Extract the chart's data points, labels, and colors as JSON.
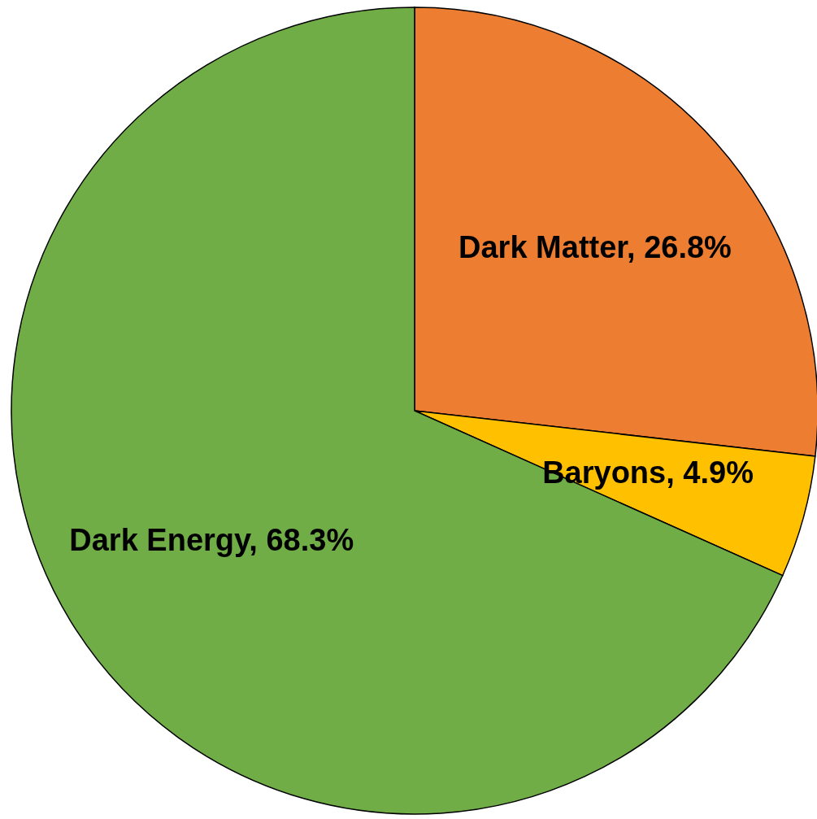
{
  "chart_data": {
    "type": "pie",
    "categories": [
      "Dark Matter",
      "Baryons",
      "Dark Energy"
    ],
    "values": [
      26.8,
      4.9,
      68.3
    ],
    "colors": [
      "#ed7d31",
      "#ffc000",
      "#70ad47"
    ],
    "value_labels": [
      ", 26.8%",
      ", 4.9%",
      ", 68.3%"
    ]
  }
}
